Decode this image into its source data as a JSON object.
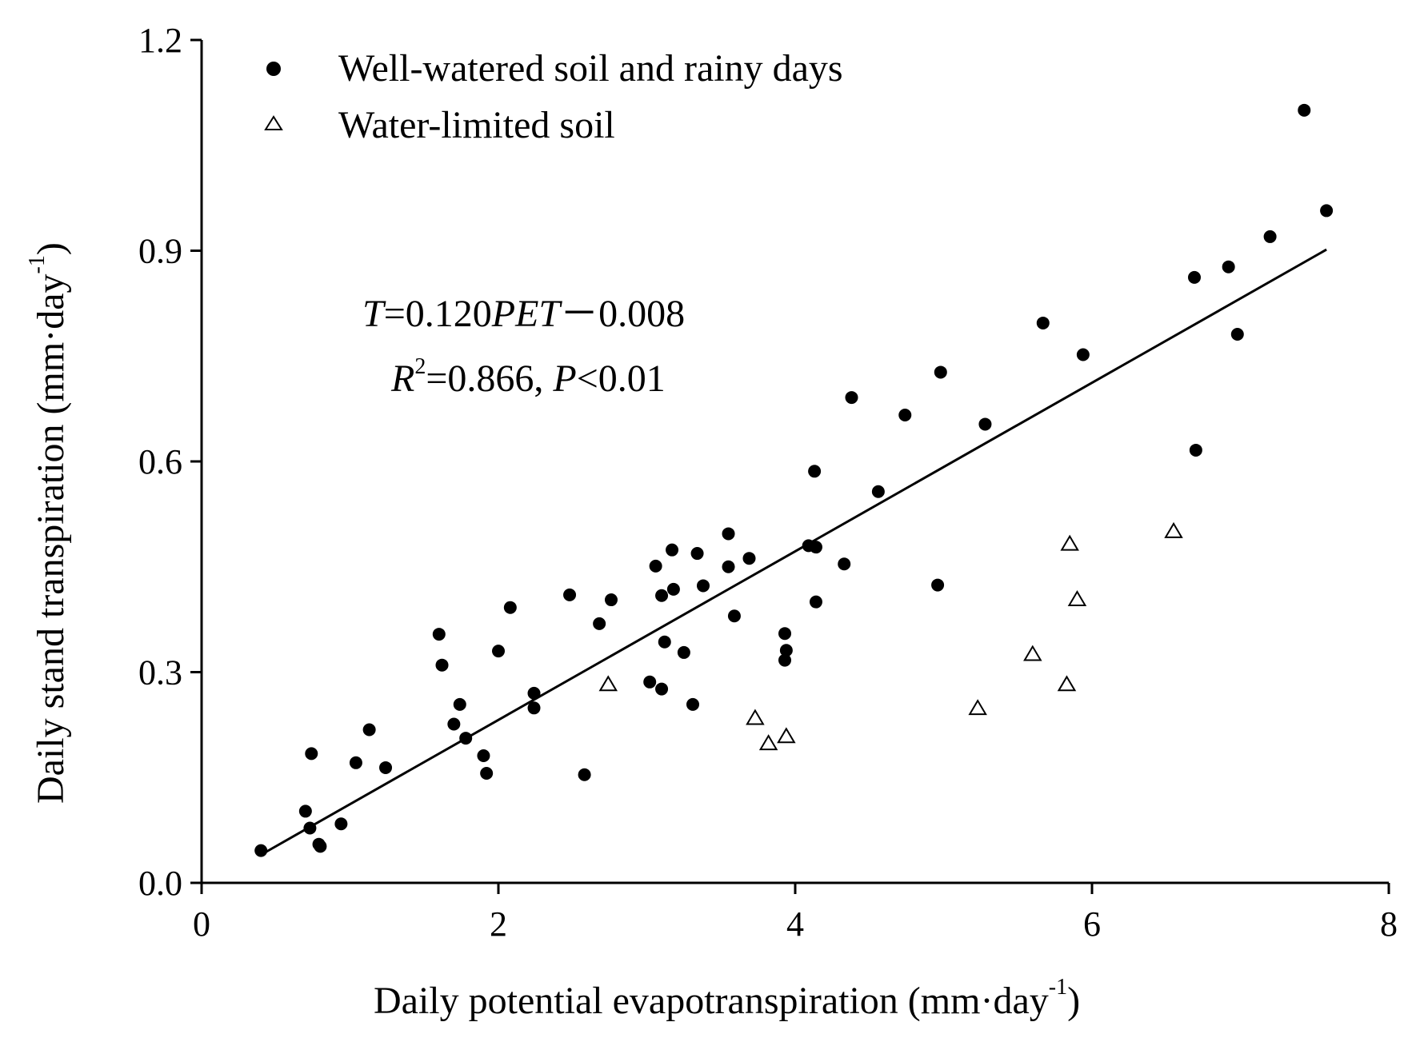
{
  "chart_data": {
    "type": "scatter",
    "xlabel": "Daily potential evapotranspiration (mm·day",
    "xlabel_sup": "-1",
    "xlabel_close": ")",
    "ylabel": "Daily stand transpiration (mm·day",
    "ylabel_sup": "-1",
    "ylabel_close": ")",
    "xlim": [
      0,
      8
    ],
    "ylim": [
      0,
      1.2
    ],
    "xticks": [
      0,
      2,
      4,
      6,
      8
    ],
    "xtick_labels": [
      "0",
      "2",
      "4",
      "6",
      "8"
    ],
    "yticks": [
      0,
      0.3,
      0.6,
      0.9,
      1.2
    ],
    "ytick_labels": [
      "0.0",
      "0.3",
      "0.6",
      "0.9",
      "1.2"
    ],
    "legend_position": "top-left",
    "series": [
      {
        "name": "Well-watered soil and rainy days",
        "marker": "filled-circle",
        "points": [
          [
            0.4,
            0.046
          ],
          [
            0.7,
            0.102
          ],
          [
            0.73,
            0.078
          ],
          [
            0.74,
            0.184
          ],
          [
            0.79,
            0.055
          ],
          [
            0.8,
            0.052
          ],
          [
            0.94,
            0.084
          ],
          [
            1.04,
            0.171
          ],
          [
            1.13,
            0.218
          ],
          [
            1.24,
            0.164
          ],
          [
            1.6,
            0.354
          ],
          [
            1.62,
            0.31
          ],
          [
            1.7,
            0.226
          ],
          [
            1.74,
            0.254
          ],
          [
            1.78,
            0.206
          ],
          [
            1.9,
            0.181
          ],
          [
            1.92,
            0.156
          ],
          [
            2.0,
            0.33
          ],
          [
            2.08,
            0.392
          ],
          [
            2.24,
            0.27
          ],
          [
            2.24,
            0.249
          ],
          [
            2.48,
            0.41
          ],
          [
            2.58,
            0.154
          ],
          [
            2.68,
            0.369
          ],
          [
            2.76,
            0.403
          ],
          [
            3.02,
            0.286
          ],
          [
            3.06,
            0.451
          ],
          [
            3.1,
            0.409
          ],
          [
            3.1,
            0.276
          ],
          [
            3.12,
            0.343
          ],
          [
            3.17,
            0.474
          ],
          [
            3.18,
            0.418
          ],
          [
            3.25,
            0.328
          ],
          [
            3.31,
            0.254
          ],
          [
            3.34,
            0.469
          ],
          [
            3.38,
            0.423
          ],
          [
            3.55,
            0.497
          ],
          [
            3.55,
            0.45
          ],
          [
            3.59,
            0.38
          ],
          [
            3.69,
            0.462
          ],
          [
            3.93,
            0.355
          ],
          [
            3.94,
            0.331
          ],
          [
            3.93,
            0.317
          ],
          [
            4.09,
            0.48
          ],
          [
            4.13,
            0.586
          ],
          [
            4.14,
            0.478
          ],
          [
            4.14,
            0.4
          ],
          [
            4.33,
            0.454
          ],
          [
            4.38,
            0.691
          ],
          [
            4.56,
            0.557
          ],
          [
            4.74,
            0.666
          ],
          [
            4.96,
            0.424
          ],
          [
            4.98,
            0.727
          ],
          [
            5.28,
            0.653
          ],
          [
            5.67,
            0.797
          ],
          [
            5.94,
            0.752
          ],
          [
            6.69,
            0.862
          ],
          [
            6.7,
            0.616
          ],
          [
            6.92,
            0.877
          ],
          [
            6.98,
            0.781
          ],
          [
            7.2,
            0.92
          ],
          [
            7.43,
            1.1
          ],
          [
            7.58,
            0.957
          ]
        ]
      },
      {
        "name": "Water-limited soil",
        "marker": "open-triangle",
        "points": [
          [
            2.74,
            0.282
          ],
          [
            3.73,
            0.234
          ],
          [
            3.82,
            0.198
          ],
          [
            3.94,
            0.208
          ],
          [
            5.23,
            0.248
          ],
          [
            5.6,
            0.325
          ],
          [
            5.83,
            0.282
          ],
          [
            5.85,
            0.482
          ],
          [
            5.9,
            0.403
          ],
          [
            6.55,
            0.5
          ]
        ]
      }
    ],
    "regression": {
      "slope": 0.12,
      "intercept": -0.008,
      "x_range": [
        0.4,
        7.58
      ]
    },
    "annotation": {
      "eq_T": "T",
      "eq_mid": "=0.120",
      "eq_PET": "PET",
      "eq_tail": "－0.008",
      "r_R": "R",
      "r_sup": "2",
      "r_mid": "=0.866, ",
      "r_P": "P",
      "r_tail": "<0.01"
    }
  }
}
